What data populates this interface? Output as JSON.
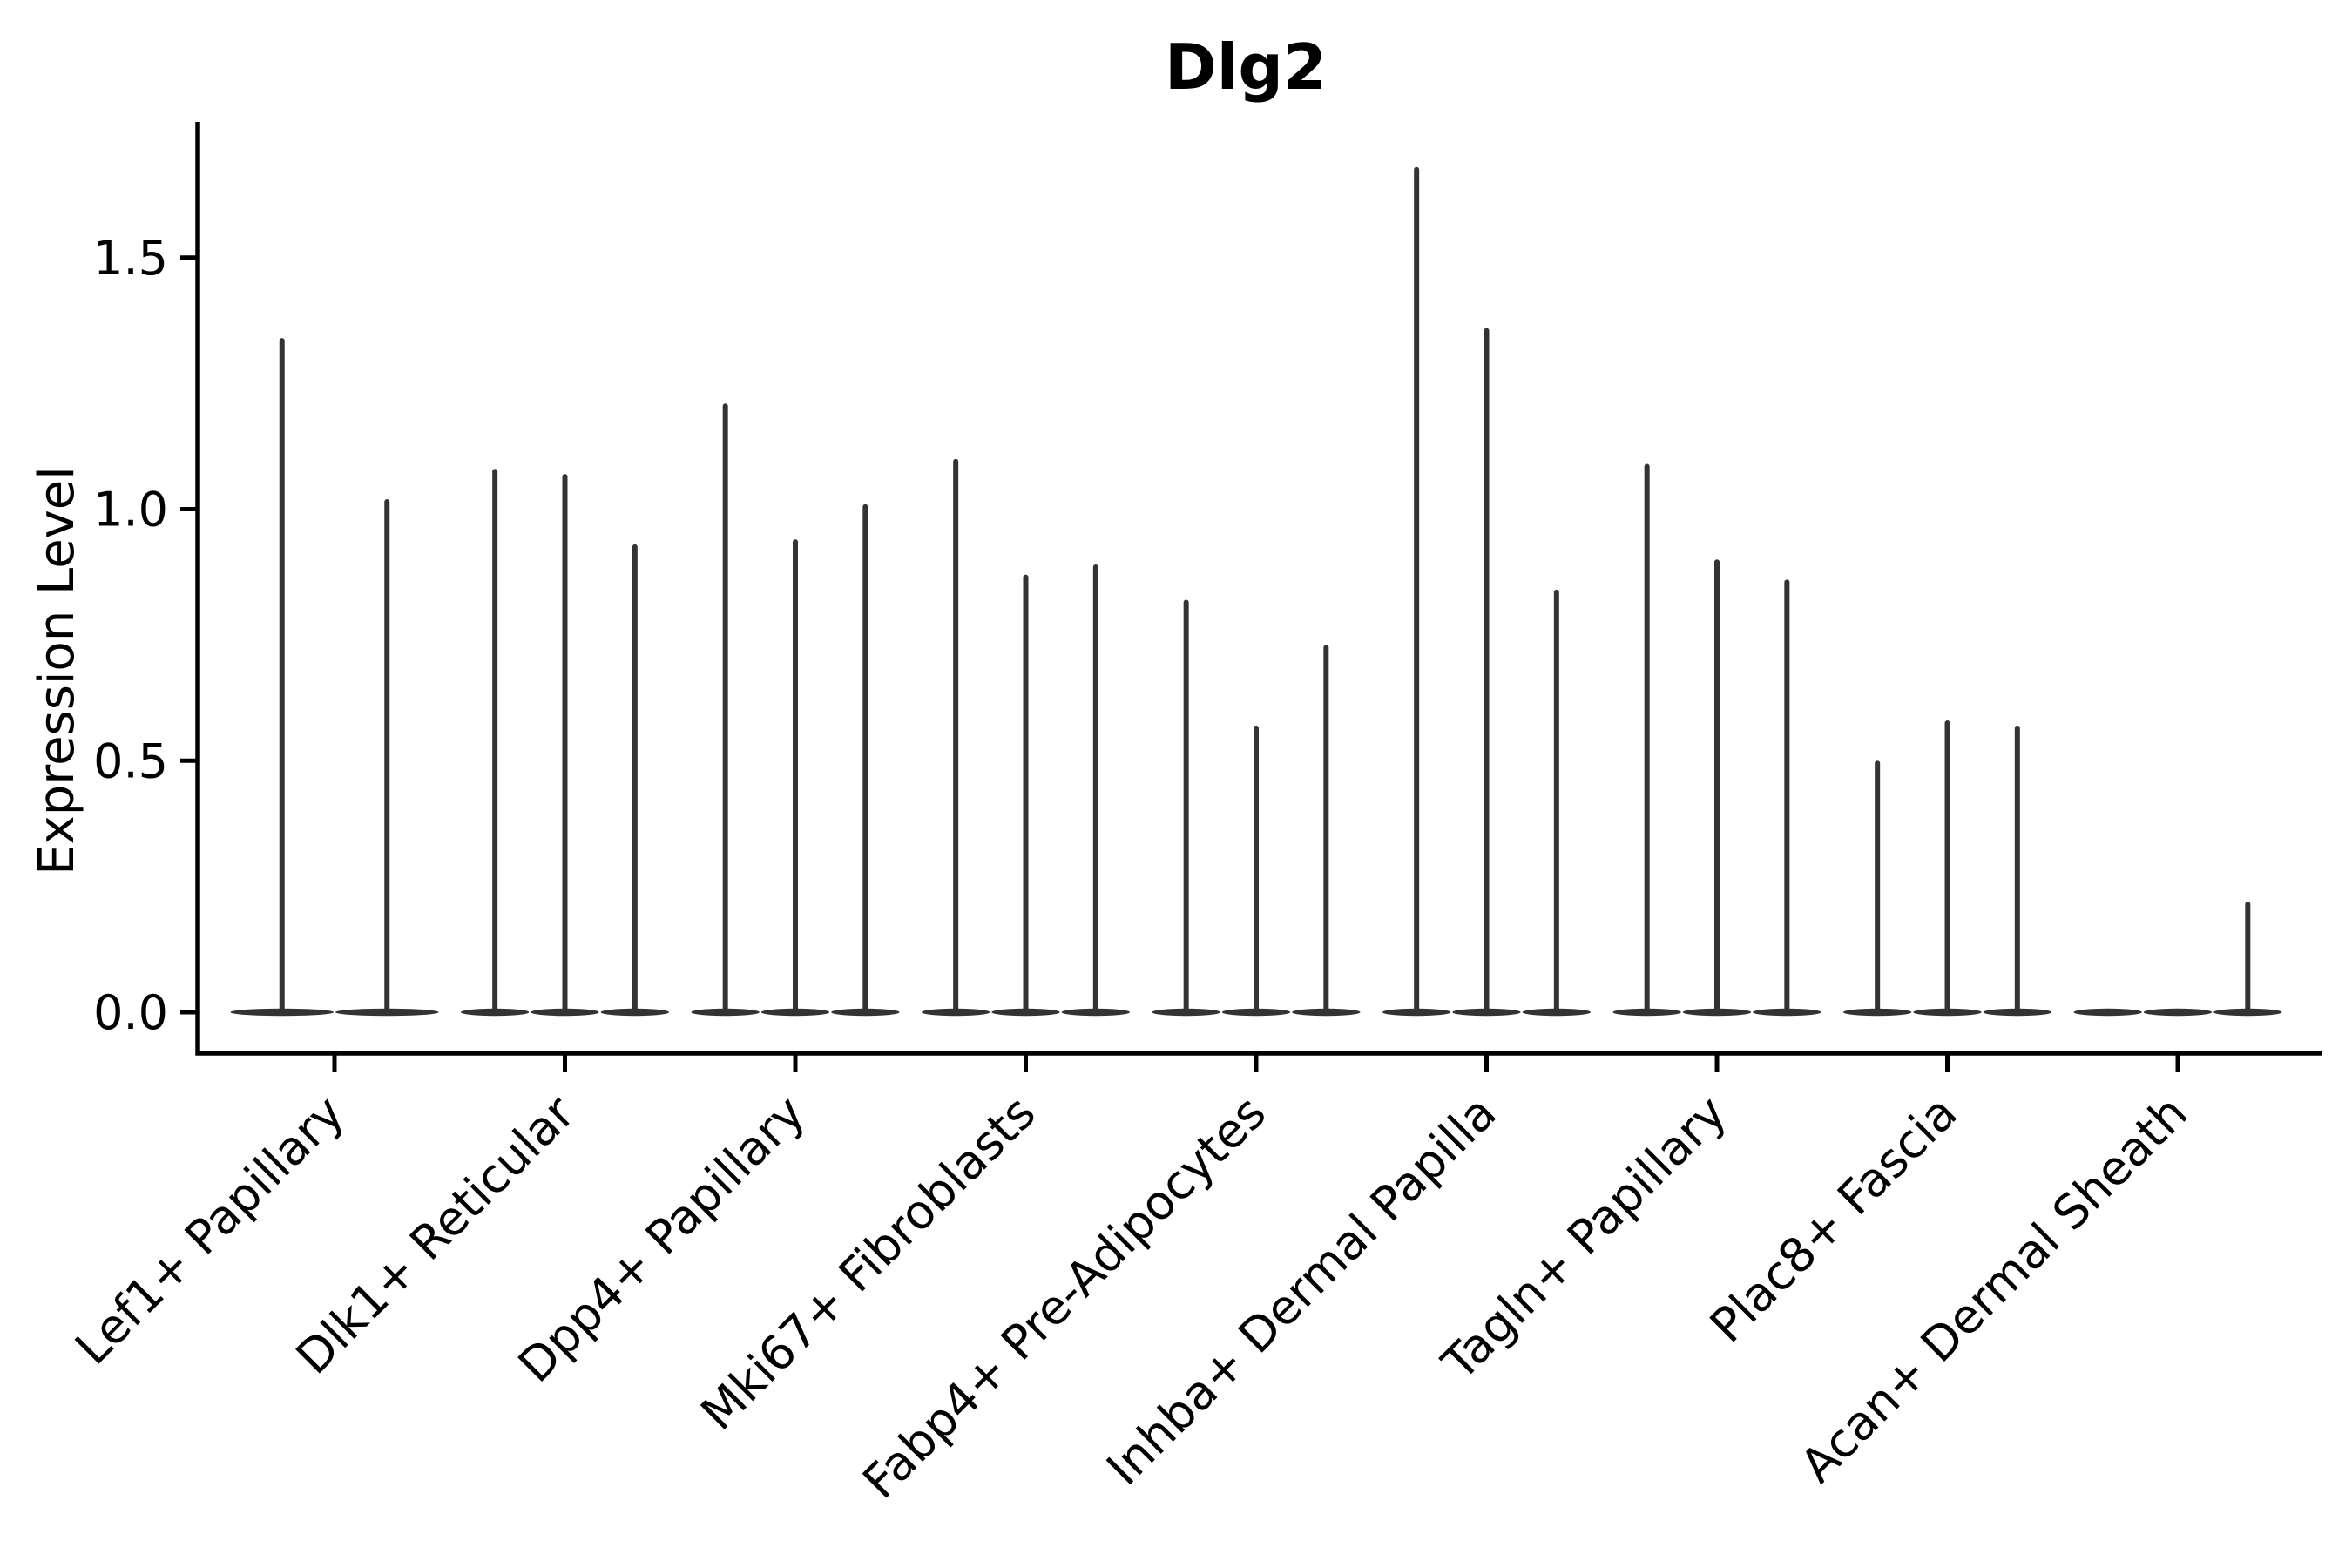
{
  "chart_data": {
    "type": "violin",
    "title": "Dlg2",
    "ylabel": "Expression Level",
    "xlabel": "",
    "grid": false,
    "legend": null,
    "ylim": [
      -0.08,
      1.77
    ],
    "ytick_labels": [
      "0.0",
      "0.5",
      "1.0",
      "1.5"
    ],
    "ytick_values": [
      0.0,
      0.5,
      1.0,
      1.5
    ],
    "colors": {
      "violin": "#333333",
      "axis": "#000000",
      "text": "#000000",
      "background": "#ffffff"
    },
    "note": "Seurat-style stacked violin plot of gene expression; each cluster shows thin violins (one per split sample) rising from a flat base at 0 to the maximum expression level",
    "categories": [
      {
        "label": "Lef1+ Papillary",
        "violin_maxima": [
          1.34,
          1.02
        ]
      },
      {
        "label": "Dlk1+ Reticular",
        "violin_maxima": [
          1.08,
          1.07,
          0.93
        ]
      },
      {
        "label": "Dpp4+ Papillary",
        "violin_maxima": [
          1.21,
          0.94,
          1.01
        ]
      },
      {
        "label": "Mki67+ Fibroblasts",
        "violin_maxima": [
          1.1,
          0.87,
          0.89
        ]
      },
      {
        "label": "Fabp4+ Pre-Adipocytes",
        "violin_maxima": [
          0.82,
          0.57,
          0.73
        ]
      },
      {
        "label": "Inhba+ Dermal Papilla",
        "violin_maxima": [
          1.68,
          1.36,
          0.84
        ]
      },
      {
        "label": "Tagln+ Papillary",
        "violin_maxima": [
          1.09,
          0.9,
          0.86
        ]
      },
      {
        "label": "Plac8+ Fascia",
        "violin_maxima": [
          0.5,
          0.58,
          0.57
        ]
      },
      {
        "label": "Acan+ Dermal Sheath",
        "violin_maxima": [
          0.0,
          0.0,
          0.22
        ]
      }
    ]
  }
}
